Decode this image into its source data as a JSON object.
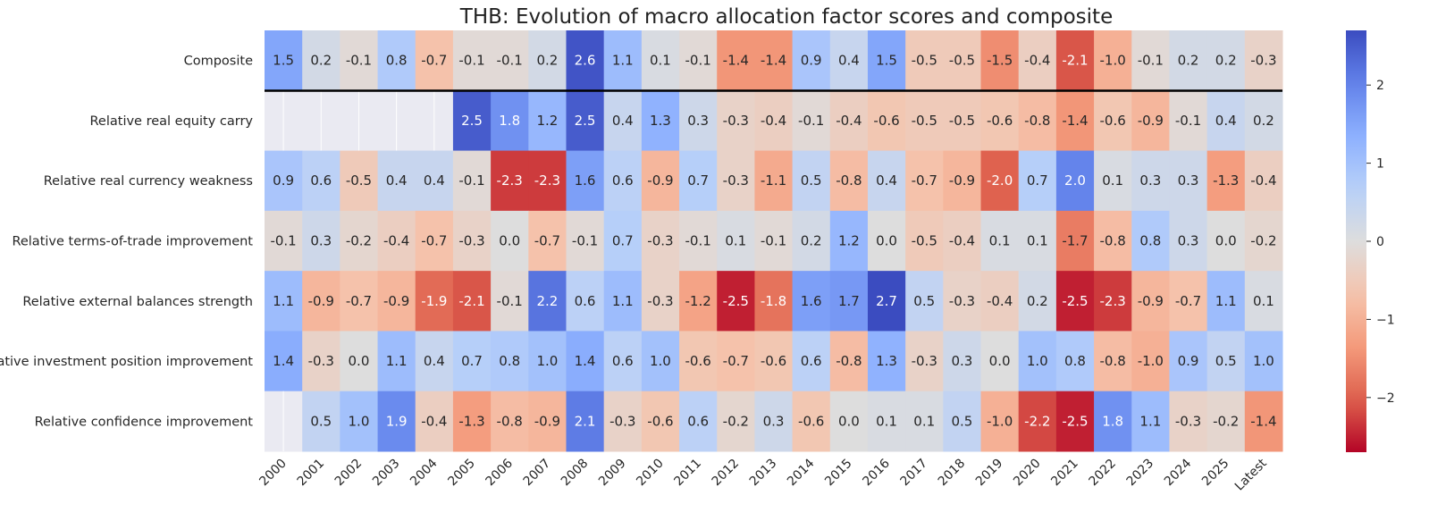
{
  "chart_data": {
    "type": "heatmap",
    "title": "THB: Evolution of macro allocation factor scores and composite",
    "xlabel": "",
    "ylabel": "",
    "x": [
      "2000",
      "2001",
      "2002",
      "2003",
      "2004",
      "2005",
      "2006",
      "2007",
      "2008",
      "2009",
      "2010",
      "2011",
      "2012",
      "2013",
      "2014",
      "2015",
      "2016",
      "2017",
      "2018",
      "2019",
      "2020",
      "2021",
      "2022",
      "2023",
      "2024",
      "2025",
      "Latest"
    ],
    "rows": [
      "Composite",
      "Relative real equity carry",
      "Relative real currency weakness",
      "Relative terms-of-trade improvement",
      "Relative external balances strength",
      "Relative investment position improvement",
      "Relative confidence improvement"
    ],
    "values": [
      [
        1.5,
        0.2,
        -0.1,
        0.8,
        -0.7,
        -0.1,
        -0.1,
        0.2,
        2.6,
        1.1,
        0.1,
        -0.1,
        -1.4,
        -1.4,
        0.9,
        0.4,
        1.5,
        -0.5,
        -0.5,
        -1.5,
        -0.4,
        -2.1,
        -1.0,
        -0.1,
        0.2,
        0.2,
        -0.3
      ],
      [
        null,
        null,
        null,
        null,
        null,
        2.5,
        1.8,
        1.2,
        2.5,
        0.4,
        1.3,
        0.3,
        -0.3,
        -0.4,
        -0.1,
        -0.4,
        -0.6,
        -0.5,
        -0.5,
        -0.6,
        -0.8,
        -1.4,
        -0.6,
        -0.9,
        -0.1,
        0.4,
        0.2
      ],
      [
        0.9,
        0.6,
        -0.5,
        0.4,
        0.4,
        -0.1,
        -2.3,
        -2.3,
        1.6,
        0.6,
        -0.9,
        0.7,
        -0.3,
        -1.1,
        0.5,
        -0.8,
        0.4,
        -0.7,
        -0.9,
        -2.0,
        0.7,
        2.0,
        0.1,
        0.3,
        0.3,
        -1.3,
        -0.4
      ],
      [
        -0.1,
        0.3,
        -0.2,
        -0.4,
        -0.7,
        -0.3,
        -0.0,
        -0.7,
        -0.1,
        0.7,
        -0.3,
        -0.1,
        0.1,
        -0.1,
        0.2,
        1.2,
        -0.0,
        -0.5,
        -0.4,
        0.1,
        0.1,
        -1.7,
        -0.8,
        0.8,
        0.3,
        -0.0,
        -0.2
      ],
      [
        1.1,
        -0.9,
        -0.7,
        -0.9,
        -1.9,
        -2.1,
        -0.1,
        2.2,
        0.6,
        1.1,
        -0.3,
        -1.2,
        -2.5,
        -1.8,
        1.6,
        1.7,
        2.7,
        0.5,
        -0.3,
        -0.4,
        0.2,
        -2.5,
        -2.3,
        -0.9,
        -0.7,
        1.1,
        0.1
      ],
      [
        1.4,
        -0.3,
        -0.0,
        1.1,
        0.4,
        0.7,
        0.8,
        1.0,
        1.4,
        0.6,
        1.0,
        -0.6,
        -0.7,
        -0.6,
        0.6,
        -0.8,
        1.3,
        -0.3,
        0.3,
        -0.0,
        1.0,
        0.8,
        -0.8,
        -1.0,
        0.9,
        0.5,
        1.0
      ],
      [
        null,
        0.5,
        1.0,
        1.9,
        -0.4,
        -1.3,
        -0.8,
        -0.9,
        2.1,
        -0.3,
        -0.6,
        0.6,
        -0.2,
        0.3,
        -0.6,
        0.0,
        0.1,
        0.1,
        0.5,
        -1.0,
        -2.2,
        -2.5,
        1.8,
        1.1,
        -0.3,
        -0.2,
        -1.4
      ]
    ],
    "colormap": "coolwarm_r",
    "vmin": -2.7,
    "vmax": 2.7,
    "colorbar_ticks": [
      "2",
      "1",
      "0",
      "−1",
      "−2"
    ],
    "colorbar_tick_values": [
      2,
      1,
      0,
      -1,
      -2
    ],
    "missing_color": "#eaeaf2",
    "separator_after_row": "Composite",
    "grid": false,
    "legend": "colorbar right"
  }
}
